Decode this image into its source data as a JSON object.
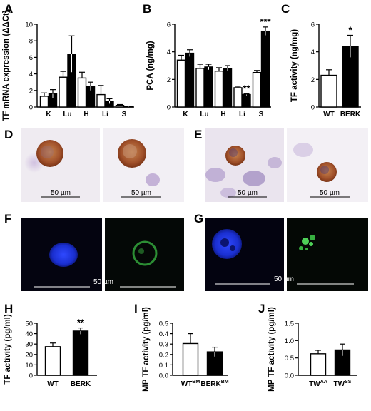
{
  "panel_labels": [
    "A",
    "B",
    "C",
    "D",
    "E",
    "F",
    "G",
    "H",
    "I",
    "J"
  ],
  "colors": {
    "control": "#ffffff",
    "treated": "#000000",
    "dapi": "#1a2fd0",
    "tf_green": "#37b040",
    "tissue": "#ede7ef",
    "stain": "#a0502a",
    "nucleus": "#8f7ab0"
  },
  "scale_bar_label": "50 µm",
  "chart_data": [
    {
      "id": "A",
      "type": "bar",
      "ylabel": "TF mRNA expression (ΔΔCt)",
      "ylim": [
        0,
        10
      ],
      "yticks": [
        0,
        2,
        4,
        6,
        8,
        10
      ],
      "categories": [
        "K",
        "Lu",
        "H",
        "Li",
        "S"
      ],
      "series": [
        {
          "values": [
            1.3,
            3.6,
            3.5,
            1.5,
            0.2
          ],
          "errors": [
            0.4,
            0.7,
            0.7,
            1.1,
            0.1
          ]
        },
        {
          "values": [
            1.6,
            6.4,
            2.5,
            0.7,
            0.05
          ],
          "errors": [
            0.5,
            2.2,
            0.5,
            0.3,
            0.05
          ]
        }
      ],
      "annotations": []
    },
    {
      "id": "B",
      "type": "bar",
      "ylabel": "PCA (ng/mg)",
      "ylim": [
        0,
        6
      ],
      "yticks": [
        0,
        2,
        4,
        6
      ],
      "categories": [
        "K",
        "Lu",
        "H",
        "Li",
        "S"
      ],
      "series": [
        {
          "values": [
            3.4,
            2.8,
            2.6,
            1.4,
            2.5
          ],
          "errors": [
            0.35,
            0.3,
            0.25,
            0.1,
            0.15
          ]
        },
        {
          "values": [
            3.9,
            2.9,
            2.8,
            0.9,
            5.5
          ],
          "errors": [
            0.25,
            0.2,
            0.2,
            0.05,
            0.3
          ]
        }
      ],
      "annotations": [
        {
          "category": "Li",
          "text": "**"
        },
        {
          "category": "S",
          "text": "***"
        }
      ]
    },
    {
      "id": "C",
      "type": "bar",
      "ylabel": "TF activity (ng/mg)",
      "ylim": [
        0,
        6
      ],
      "yticks": [
        0,
        2,
        4,
        6
      ],
      "categories": [
        "WT",
        "BERK"
      ],
      "values": [
        2.3,
        4.4
      ],
      "errors": [
        0.4,
        0.8
      ],
      "annotations": [
        {
          "category": "BERK",
          "text": "*"
        }
      ]
    },
    {
      "id": "H",
      "type": "bar",
      "ylabel": "TF activity (pg/ml)",
      "ylim": [
        0,
        50
      ],
      "yticks": [
        0,
        10,
        20,
        30,
        40,
        50
      ],
      "categories": [
        "WT",
        "BERK"
      ],
      "values": [
        27.5,
        42.5
      ],
      "errors": [
        3.5,
        3.0
      ],
      "annotations": [
        {
          "category": "BERK",
          "text": "**"
        }
      ]
    },
    {
      "id": "I",
      "type": "bar",
      "ylabel": "MP TF activity (pg/ml)",
      "ylim": [
        0,
        0.5
      ],
      "yticks": [
        0.0,
        0.1,
        0.2,
        0.3,
        0.4,
        0.5
      ],
      "categories": [
        {
          "base": "WT",
          "sup": "BM"
        },
        {
          "base": "BERK",
          "sup": "BM"
        }
      ],
      "values": [
        0.305,
        0.225
      ],
      "errors": [
        0.095,
        0.045
      ],
      "annotations": []
    },
    {
      "id": "J",
      "type": "bar",
      "ylabel": "MP TF activity (pg/ml)",
      "ylim": [
        0,
        1.5
      ],
      "yticks": [
        0.0,
        0.5,
        1.0,
        1.5
      ],
      "categories": [
        {
          "base": "TW",
          "sup": "AA"
        },
        {
          "base": "TW",
          "sup": "SS"
        }
      ],
      "values": [
        0.62,
        0.73
      ],
      "errors": [
        0.1,
        0.17
      ],
      "annotations": []
    }
  ]
}
